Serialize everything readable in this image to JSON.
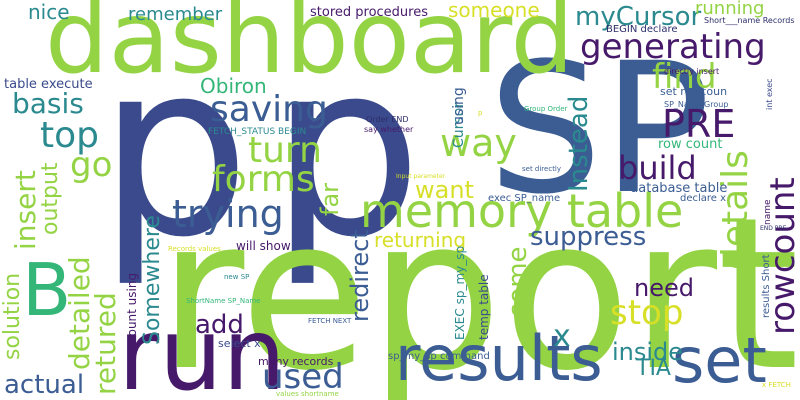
{
  "palette": {
    "navy": "#3a4a8c",
    "purple": "#46196a",
    "blue": "#3b5d93",
    "teal": "#2b8a8f",
    "green": "#34b679",
    "lime": "#94d444",
    "yellow": "#d7df27",
    "dark": "#2e2e6b"
  },
  "words": [
    {
      "text": "p"
    },
    {
      "text": "p"
    },
    {
      "text": "SP"
    },
    {
      "text": "report"
    },
    {
      "text": "dashboard"
    },
    {
      "text": "run"
    },
    {
      "text": "results"
    },
    {
      "text": "set"
    },
    {
      "text": "memory table"
    },
    {
      "text": "B"
    },
    {
      "text": "generating"
    },
    {
      "text": "find"
    },
    {
      "text": "myCursor"
    },
    {
      "text": "PRE"
    },
    {
      "text": "details"
    },
    {
      "text": "rowcount"
    },
    {
      "text": "saving"
    },
    {
      "text": "turn"
    },
    {
      "text": "forms"
    },
    {
      "text": "trying"
    },
    {
      "text": "way"
    },
    {
      "text": "build"
    },
    {
      "text": "top"
    },
    {
      "text": "basis"
    },
    {
      "text": "go"
    },
    {
      "text": "insert"
    },
    {
      "text": "detailed"
    },
    {
      "text": "retured"
    },
    {
      "text": "output"
    },
    {
      "text": "solution"
    },
    {
      "text": "actual"
    },
    {
      "text": "Somewhere"
    },
    {
      "text": "add"
    },
    {
      "text": "used"
    },
    {
      "text": "stop"
    },
    {
      "text": "need"
    },
    {
      "text": "come"
    },
    {
      "text": "suppress"
    },
    {
      "text": "inside"
    },
    {
      "text": "Instead"
    },
    {
      "text": "want"
    },
    {
      "text": "far"
    },
    {
      "text": "redirect"
    },
    {
      "text": "returning"
    },
    {
      "text": "x"
    },
    {
      "text": "TIA"
    },
    {
      "text": "Obiron"
    },
    {
      "text": "nice"
    },
    {
      "text": "remember"
    },
    {
      "text": "someone"
    },
    {
      "text": "running"
    },
    {
      "text": "stored procedures"
    },
    {
      "text": "table execute"
    },
    {
      "text": "Cursor"
    },
    {
      "text": "using"
    },
    {
      "text": "row count"
    },
    {
      "text": "database table"
    },
    {
      "text": "exec SP_name"
    },
    {
      "text": "declare x"
    },
    {
      "text": "will show"
    },
    {
      "text": "count using"
    },
    {
      "text": "EXEC sp_my_sp"
    },
    {
      "text": "temp table"
    },
    {
      "text": "sp_my_sp command"
    },
    {
      "text": "many records"
    },
    {
      "text": "select x"
    },
    {
      "text": "set rowcoun"
    },
    {
      "text": "BEGIN declare"
    },
    {
      "text": "Short___name Records"
    },
    {
      "text": "directly insert"
    },
    {
      "text": "SP_Name Group"
    },
    {
      "text": "int exec"
    },
    {
      "text": "FETCH_STATUS BEGIN"
    },
    {
      "text": "Order END"
    },
    {
      "text": "say whether"
    },
    {
      "text": "Group Order"
    },
    {
      "text": "Input parameter"
    },
    {
      "text": "set directly"
    },
    {
      "text": "results Short"
    },
    {
      "text": "name"
    },
    {
      "text": "END PRE"
    },
    {
      "text": "Records values"
    },
    {
      "text": "new SP"
    },
    {
      "text": "ShortName SP_Name"
    },
    {
      "text": "FETCH NEXT"
    },
    {
      "text": "values shortname"
    },
    {
      "text": "x FETCH"
    },
    {
      "text": "p"
    }
  ]
}
